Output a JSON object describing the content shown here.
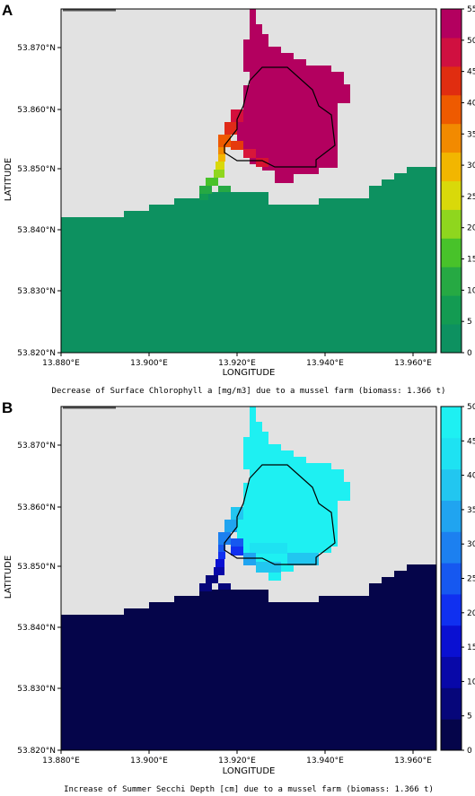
{
  "panels": [
    {
      "letter": "A",
      "caption": "Decrease of Surface Chlorophyll a [mg/m3] due to a mussel farm (biomass: 1.366 t)",
      "xlabel": "LONGITUDE",
      "ylabel": "LATITUDE",
      "x_ticks": [
        "13.880°E",
        "13.900°E",
        "13.920°E",
        "13.940°E",
        "13.960°E"
      ],
      "y_ticks": [
        "53.870°N",
        "53.860°N",
        "53.850°N",
        "53.840°N",
        "53.830°N",
        "53.820°N"
      ],
      "colorbar_ticks": [
        "55",
        "50",
        "45",
        "40",
        "35",
        "30",
        "25",
        "20",
        "15",
        "10",
        "5",
        "0"
      ],
      "colors": {
        "land": "#e2e2e2",
        "sea_base": "#0d9160",
        "plume_main": "#b3005f",
        "outline": "#000000"
      },
      "colorbar_colors": [
        "#0d9160",
        "#139b52",
        "#26a943",
        "#48c22a",
        "#8fd61e",
        "#d9d90a",
        "#f2b600",
        "#f28a00",
        "#ee5a00",
        "#e02d10",
        "#d01040",
        "#b3005f"
      ]
    },
    {
      "letter": "B",
      "caption": "Increase of Summer Secchi Depth [cm] due to a mussel farm (biomass: 1.366 t)",
      "xlabel": "LONGITUDE",
      "ylabel": "LATITUDE",
      "x_ticks": [
        "13.880°E",
        "13.900°E",
        "13.920°E",
        "13.940°E",
        "13.960°E"
      ],
      "y_ticks": [
        "53.870°N",
        "53.860°N",
        "53.850°N",
        "53.840°N",
        "53.830°N",
        "53.820°N"
      ],
      "colorbar_ticks": [
        "50",
        "45",
        "40",
        "35",
        "30",
        "25",
        "20",
        "15",
        "10",
        "5",
        "0"
      ],
      "colors": {
        "land": "#e2e2e2",
        "sea_base": "#05054a",
        "plume_main": "#1ef0f2",
        "outline": "#000000"
      },
      "colorbar_colors": [
        "#05054a",
        "#06067a",
        "#0808a8",
        "#0a10d2",
        "#1030f0",
        "#1658f0",
        "#1c80f0",
        "#20a4f0",
        "#22c6f0",
        "#1ee2f2",
        "#1ef0f2"
      ]
    }
  ]
}
